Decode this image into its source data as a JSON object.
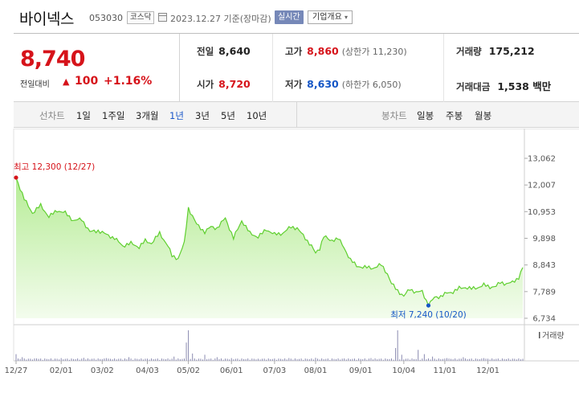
{
  "header": {
    "name": "바이넥스",
    "code": "053030",
    "market": "코스닥",
    "date": "2023.12.27 기준(장마감)",
    "live_label": "실시간",
    "corp_label": "기업개요",
    "corp_arrow": "▾"
  },
  "quote": {
    "price": "8,740",
    "change_label": "전일대비",
    "change_arrow": "▲",
    "change_value": "100",
    "change_pct": "+1.16%",
    "prev_label": "전일",
    "prev": "8,640",
    "open_label": "시가",
    "open": "8,720",
    "high_label": "고가",
    "high": "8,860",
    "upper_limit": "(상한가 11,230)",
    "low_label": "저가",
    "low": "8,630",
    "lower_limit": "(하한가 6,050)",
    "volume_label": "거래량",
    "volume": "175,212",
    "amount_label": "거래대금",
    "amount": "1,538 백만"
  },
  "period_bar": {
    "line_label": "선차트",
    "line_periods": [
      "1일",
      "1주일",
      "3개월",
      "1년",
      "3년",
      "5년",
      "10년"
    ],
    "selected": "1년",
    "candle_label": "봉차트",
    "candle_periods": [
      "일봉",
      "주봉",
      "월봉"
    ]
  },
  "colors": {
    "up": "#d6131a",
    "down": "#1456c6",
    "line": "#5fcf2f",
    "fill_top": "#b6ec96",
    "fill_bottom": "#f3fced",
    "volume": "#8a8ab0"
  },
  "chart_data": {
    "type": "area",
    "y_ticks": [
      "13,062",
      "12,007",
      "10,953",
      "9,898",
      "8,843",
      "7,789",
      "6,734"
    ],
    "ylim": [
      6734,
      13062
    ],
    "x_ticks": [
      "12/27",
      "02/01",
      "03/02",
      "04/03",
      "05/02",
      "06/01",
      "07/03",
      "08/01",
      "09/01",
      "10/04",
      "11/01",
      "12/01"
    ],
    "x_tick_index": [
      0,
      22,
      42,
      64,
      84,
      105,
      126,
      146,
      168,
      189,
      209,
      230
    ],
    "high_annotation": "최고 12,300 (12/27)",
    "low_annotation": "최저 7,240 (10/20)",
    "high_index": 0,
    "low_index": 201,
    "volume_label": "거래량",
    "anchors": [
      [
        0,
        12300
      ],
      [
        4,
        11450
      ],
      [
        8,
        10900
      ],
      [
        12,
        11200
      ],
      [
        16,
        10750
      ],
      [
        20,
        11000
      ],
      [
        24,
        10900
      ],
      [
        28,
        10600
      ],
      [
        32,
        10650
      ],
      [
        36,
        10150
      ],
      [
        40,
        10200
      ],
      [
        44,
        10050
      ],
      [
        48,
        9900
      ],
      [
        52,
        9600
      ],
      [
        56,
        9700
      ],
      [
        60,
        9550
      ],
      [
        63,
        9800
      ],
      [
        66,
        9700
      ],
      [
        70,
        10100
      ],
      [
        74,
        9600
      ],
      [
        76,
        9200
      ],
      [
        79,
        9100
      ],
      [
        82,
        9700
      ],
      [
        84,
        11100
      ],
      [
        88,
        10450
      ],
      [
        92,
        10150
      ],
      [
        95,
        10350
      ],
      [
        98,
        10300
      ],
      [
        102,
        10700
      ],
      [
        106,
        9900
      ],
      [
        110,
        10600
      ],
      [
        114,
        10100
      ],
      [
        118,
        9950
      ],
      [
        122,
        10250
      ],
      [
        126,
        10050
      ],
      [
        130,
        10100
      ],
      [
        134,
        10350
      ],
      [
        137,
        10300
      ],
      [
        140,
        10000
      ],
      [
        144,
        9600
      ],
      [
        146,
        9300
      ],
      [
        148,
        9500
      ],
      [
        150,
        10000
      ],
      [
        153,
        9800
      ],
      [
        157,
        9900
      ],
      [
        160,
        9500
      ],
      [
        163,
        9050
      ],
      [
        166,
        8800
      ],
      [
        170,
        8750
      ],
      [
        174,
        8720
      ],
      [
        178,
        8850
      ],
      [
        181,
        8500
      ],
      [
        183,
        8100
      ],
      [
        186,
        7830
      ],
      [
        189,
        7600
      ],
      [
        192,
        7900
      ],
      [
        195,
        7750
      ],
      [
        198,
        7800
      ],
      [
        201,
        7240
      ],
      [
        204,
        7560
      ],
      [
        207,
        7600
      ],
      [
        210,
        7730
      ],
      [
        213,
        7780
      ],
      [
        216,
        7920
      ],
      [
        219,
        7960
      ],
      [
        222,
        7900
      ],
      [
        225,
        7950
      ],
      [
        228,
        8050
      ],
      [
        231,
        7970
      ],
      [
        234,
        8000
      ],
      [
        236,
        8150
      ],
      [
        239,
        8100
      ],
      [
        242,
        8150
      ],
      [
        245,
        8350
      ],
      [
        247,
        8740
      ]
    ],
    "volume_spikes": [
      [
        0,
        22
      ],
      [
        3,
        12
      ],
      [
        10,
        8
      ],
      [
        22,
        9
      ],
      [
        33,
        10
      ],
      [
        44,
        9
      ],
      [
        55,
        12
      ],
      [
        66,
        8
      ],
      [
        77,
        14
      ],
      [
        83,
        60
      ],
      [
        84,
        100
      ],
      [
        86,
        24
      ],
      [
        92,
        20
      ],
      [
        98,
        12
      ],
      [
        105,
        9
      ],
      [
        118,
        7
      ],
      [
        133,
        9
      ],
      [
        146,
        10
      ],
      [
        160,
        8
      ],
      [
        173,
        9
      ],
      [
        185,
        42
      ],
      [
        186,
        100
      ],
      [
        188,
        20
      ],
      [
        196,
        36
      ],
      [
        199,
        22
      ],
      [
        203,
        14
      ],
      [
        210,
        9
      ],
      [
        218,
        12
      ],
      [
        228,
        9
      ],
      [
        240,
        8
      ]
    ]
  }
}
